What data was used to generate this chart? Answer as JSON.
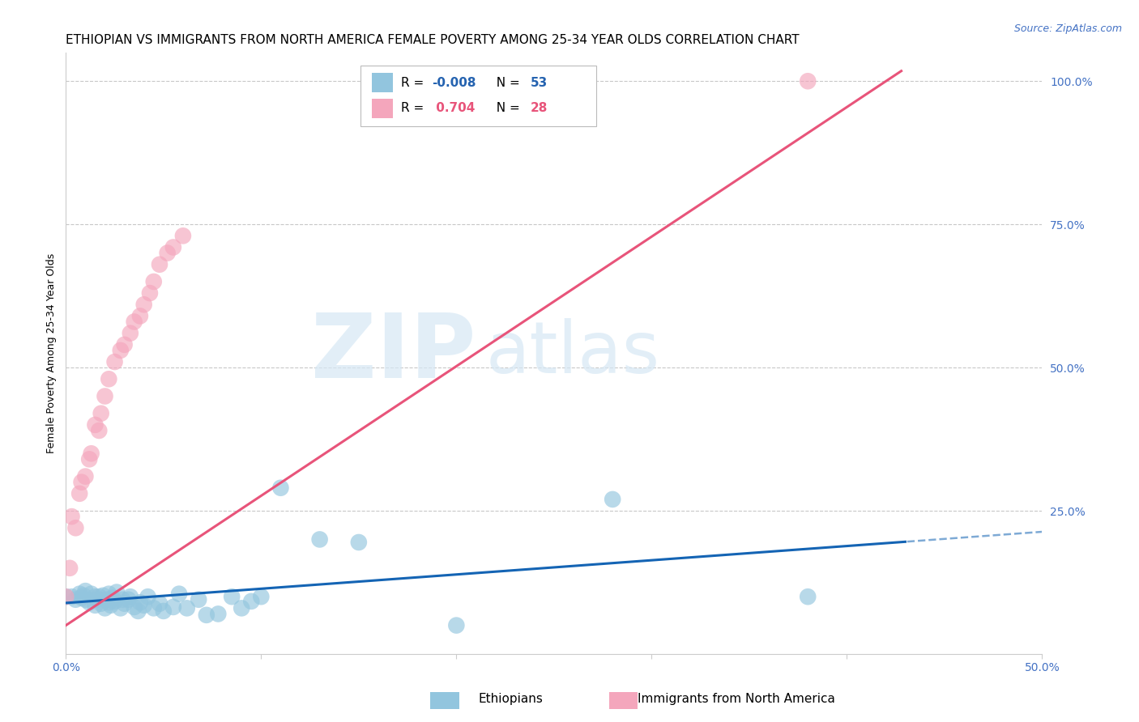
{
  "title": "ETHIOPIAN VS IMMIGRANTS FROM NORTH AMERICA FEMALE POVERTY AMONG 25-34 YEAR OLDS CORRELATION CHART",
  "source": "Source: ZipAtlas.com",
  "ylabel": "Female Poverty Among 25-34 Year Olds",
  "xlim": [
    0.0,
    0.5
  ],
  "ylim": [
    0.0,
    1.05
  ],
  "xticks": [
    0.0,
    0.1,
    0.2,
    0.3,
    0.4,
    0.5
  ],
  "xticklabels": [
    "0.0%",
    "",
    "",
    "",
    "",
    "50.0%"
  ],
  "yticks_right": [
    0.0,
    0.25,
    0.5,
    0.75,
    1.0
  ],
  "yticklabels_right": [
    "",
    "25.0%",
    "50.0%",
    "75.0%",
    "100.0%"
  ],
  "blue_color": "#92c5de",
  "pink_color": "#f4a6bc",
  "line_blue": "#1464b4",
  "line_pink": "#e8547a",
  "watermark_zip": "ZIP",
  "watermark_atlas": "atlas",
  "title_fontsize": 11,
  "axis_label_fontsize": 9,
  "tick_fontsize": 10,
  "blue_line_solid_end": 0.43,
  "blue_r": "-0.008",
  "blue_n": "53",
  "pink_r": "0.704",
  "pink_n": "28",
  "ethiopians_x": [
    0.0,
    0.003,
    0.005,
    0.007,
    0.008,
    0.009,
    0.01,
    0.01,
    0.012,
    0.013,
    0.015,
    0.015,
    0.016,
    0.017,
    0.018,
    0.019,
    0.02,
    0.021,
    0.022,
    0.022,
    0.023,
    0.024,
    0.025,
    0.026,
    0.028,
    0.029,
    0.03,
    0.032,
    0.033,
    0.035,
    0.037,
    0.038,
    0.04,
    0.042,
    0.045,
    0.048,
    0.05,
    0.055,
    0.058,
    0.062,
    0.068,
    0.072,
    0.078,
    0.085,
    0.09,
    0.095,
    0.1,
    0.11,
    0.13,
    0.15,
    0.2,
    0.28,
    0.38
  ],
  "ethiopians_y": [
    0.1,
    0.1,
    0.095,
    0.105,
    0.098,
    0.102,
    0.095,
    0.11,
    0.09,
    0.105,
    0.085,
    0.1,
    0.095,
    0.1,
    0.088,
    0.102,
    0.08,
    0.095,
    0.09,
    0.105,
    0.085,
    0.098,
    0.092,
    0.108,
    0.08,
    0.095,
    0.088,
    0.095,
    0.1,
    0.082,
    0.075,
    0.09,
    0.085,
    0.1,
    0.08,
    0.088,
    0.075,
    0.082,
    0.105,
    0.08,
    0.095,
    0.068,
    0.07,
    0.1,
    0.08,
    0.092,
    0.1,
    0.29,
    0.2,
    0.195,
    0.05,
    0.27,
    0.1
  ],
  "north_america_x": [
    0.0,
    0.002,
    0.003,
    0.005,
    0.007,
    0.008,
    0.01,
    0.012,
    0.013,
    0.015,
    0.017,
    0.018,
    0.02,
    0.022,
    0.025,
    0.028,
    0.03,
    0.033,
    0.035,
    0.038,
    0.04,
    0.043,
    0.045,
    0.048,
    0.052,
    0.055,
    0.06,
    0.38
  ],
  "north_america_y": [
    0.1,
    0.15,
    0.24,
    0.22,
    0.28,
    0.3,
    0.31,
    0.34,
    0.35,
    0.4,
    0.39,
    0.42,
    0.45,
    0.48,
    0.51,
    0.53,
    0.54,
    0.56,
    0.58,
    0.59,
    0.61,
    0.63,
    0.65,
    0.68,
    0.7,
    0.71,
    0.73,
    1.0
  ]
}
